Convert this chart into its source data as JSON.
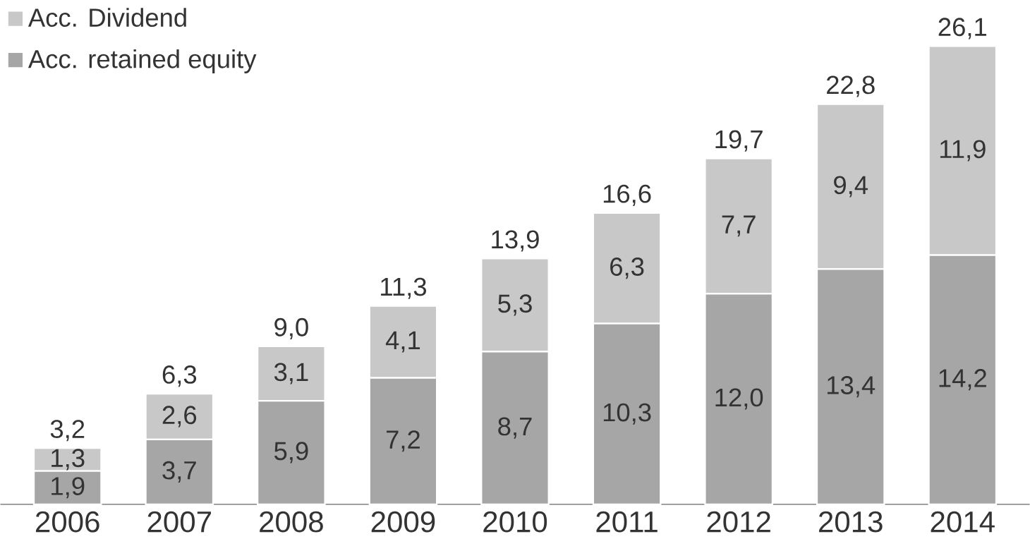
{
  "chart_data": {
    "type": "bar",
    "stacked": true,
    "categories": [
      "2006",
      "2007",
      "2008",
      "2009",
      "2010",
      "2011",
      "2012",
      "2013",
      "2014"
    ],
    "series": [
      {
        "name": "Acc. retained equity",
        "color": "#a6a6a6",
        "values": [
          1.9,
          3.7,
          5.9,
          7.2,
          8.7,
          10.3,
          12.0,
          13.4,
          14.2
        ],
        "value_labels": [
          "1,9",
          "3,7",
          "5,9",
          "7,2",
          "8,7",
          "10,3",
          "12,0",
          "13,4",
          "14,2"
        ]
      },
      {
        "name": "Acc. Dividend",
        "color": "#c8c8c8",
        "values": [
          1.3,
          2.6,
          3.1,
          4.1,
          5.3,
          6.3,
          7.7,
          9.4,
          11.9
        ],
        "value_labels": [
          "1,3",
          "2,6",
          "3,1",
          "4,1",
          "5,3",
          "6,3",
          "7,7",
          "9,4",
          "11,9"
        ]
      }
    ],
    "totals": [
      "3,2",
      "6,3",
      "9,0",
      "11,3",
      "13,9",
      "16,6",
      "19,7",
      "22,8",
      "26,1"
    ],
    "legend": "top left",
    "grid": false
  }
}
